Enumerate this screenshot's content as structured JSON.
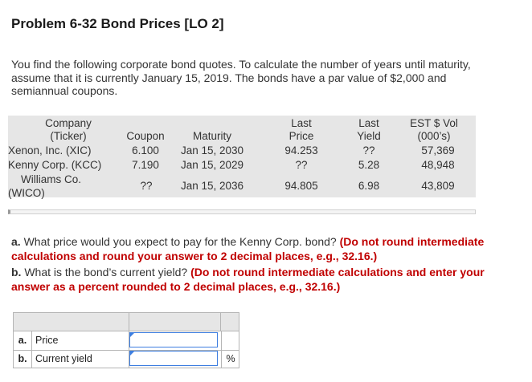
{
  "title": "Problem 6-32 Bond Prices [LO 2]",
  "intro": "You find the following corporate bond quotes. To calculate the number of years until maturity, assume that it is currently January 15, 2019. The bonds have a par value of $2,000 and semiannual coupons.",
  "quote_table": {
    "headers": {
      "company": "Company",
      "ticker": "(Ticker)",
      "coupon": "Coupon",
      "maturity": "Maturity",
      "last": "Last",
      "price": "Price",
      "last2": "Last",
      "yield": "Yield",
      "est": "EST $ Vol",
      "thousands": "(000’s)"
    },
    "rows": [
      {
        "company": "Xenon, Inc. (XIC)",
        "coupon": "6.100",
        "maturity": "Jan 15, 2030",
        "price": "94.253",
        "yield": "??",
        "vol": "57,369"
      },
      {
        "company": "Kenny Corp. (KCC)",
        "coupon": "7.190",
        "maturity": "Jan 15, 2029",
        "price": "??",
        "yield": "5.28",
        "vol": "48,948"
      },
      {
        "company_line1": "Williams Co.",
        "company_line2": "(WICO)",
        "coupon": "??",
        "maturity": "Jan 15, 2036",
        "price": "94.805",
        "yield": "6.98",
        "vol": "43,809"
      }
    ]
  },
  "questions": {
    "a_label": "a.",
    "a_text": "What price would you expect to pay for the Kenny Corp. bond?",
    "a_note": "(Do not round intermediate calculations and round your answer to 2 decimal places, e.g., 32.16.)",
    "b_label": "b.",
    "b_text": "What is the bond’s current yield?",
    "b_note": "(Do not round intermediate calculations and enter your answer as a percent rounded to 2 decimal places, e.g., 32.16.)"
  },
  "answers": {
    "rows": [
      {
        "letter": "a.",
        "label": "Price",
        "value": "",
        "unit": ""
      },
      {
        "letter": "b.",
        "label": "Current yield",
        "value": "",
        "unit": "%"
      }
    ]
  }
}
